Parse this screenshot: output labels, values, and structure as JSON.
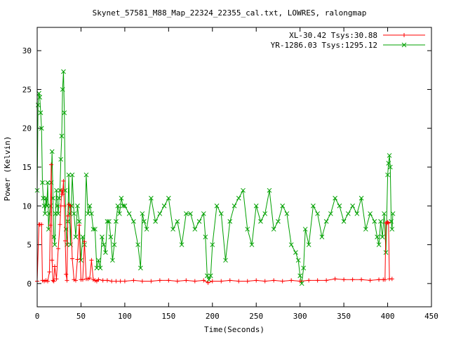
{
  "chart_data": {
    "type": "line",
    "title": "Skynet_57581_M88_Map_22324_22355_cal.txt, LOWRES, ralongmap",
    "xlabel": "Time(Seconds)",
    "ylabel": "Power (Kelvin)",
    "xlim": [
      0,
      450
    ],
    "ylim": [
      -3,
      33
    ],
    "xticks": [
      0,
      50,
      100,
      150,
      200,
      250,
      300,
      350,
      400,
      450
    ],
    "yticks": [
      0,
      5,
      10,
      15,
      20,
      25,
      30
    ],
    "grid": false,
    "legend_position": "top-right",
    "series": [
      {
        "name": "XL-30.42 Tsys:30.88",
        "color": "#ff0000",
        "marker": "plus",
        "x": [
          0,
          2,
          3,
          5,
          6,
          8,
          10,
          12,
          14,
          15,
          16,
          17,
          18,
          19,
          20,
          22,
          24,
          26,
          27,
          28,
          29,
          30,
          31,
          32,
          33,
          34,
          35,
          36,
          38,
          40,
          42,
          44,
          46,
          48,
          50,
          52,
          54,
          56,
          58,
          60,
          62,
          64,
          66,
          68,
          70,
          75,
          80,
          85,
          90,
          95,
          100,
          110,
          120,
          130,
          140,
          150,
          160,
          170,
          180,
          190,
          195,
          200,
          210,
          220,
          230,
          240,
          250,
          260,
          270,
          280,
          290,
          300,
          310,
          320,
          330,
          340,
          350,
          360,
          370,
          380,
          390,
          395,
          397,
          398,
          399,
          400,
          401,
          402,
          405
        ],
        "y": [
          0.3,
          7.6,
          7.6,
          7.6,
          0.4,
          0.3,
          0.4,
          0.3,
          1.5,
          7.5,
          15.3,
          3.0,
          0.4,
          0.3,
          2.2,
          0.6,
          4.5,
          7.6,
          10.0,
          12.0,
          11.5,
          13.2,
          10.0,
          5.5,
          1.2,
          0.4,
          8.7,
          10.2,
          10.0,
          3.2,
          0.5,
          0.4,
          3.1,
          7.5,
          0.5,
          0.5,
          5.4,
          0.6,
          0.6,
          0.7,
          3.0,
          0.5,
          0.4,
          0.3,
          0.5,
          0.4,
          0.4,
          0.3,
          0.3,
          0.3,
          0.3,
          0.4,
          0.3,
          0.3,
          0.4,
          0.4,
          0.3,
          0.4,
          0.3,
          0.4,
          0.1,
          0.3,
          0.3,
          0.4,
          0.3,
          0.3,
          0.4,
          0.3,
          0.4,
          0.3,
          0.4,
          0.3,
          0.4,
          0.4,
          0.4,
          0.6,
          0.5,
          0.5,
          0.5,
          0.4,
          0.5,
          0.5,
          0.5,
          7.8,
          7.8,
          7.9,
          7.8,
          0.6,
          0.6
        ]
      },
      {
        "name": "YR-1286.03 Tsys:1295.12",
        "color": "#00a000",
        "marker": "cross",
        "x": [
          0,
          1,
          2,
          3,
          4,
          5,
          6,
          7,
          8,
          9,
          10,
          11,
          12,
          13,
          14,
          15,
          16,
          17,
          18,
          19,
          20,
          21,
          22,
          23,
          24,
          25,
          26,
          27,
          28,
          29,
          30,
          31,
          32,
          33,
          34,
          35,
          36,
          37,
          38,
          39,
          40,
          42,
          44,
          46,
          48,
          50,
          52,
          54,
          56,
          58,
          60,
          62,
          64,
          66,
          68,
          70,
          72,
          74,
          76,
          78,
          80,
          82,
          84,
          86,
          88,
          90,
          92,
          94,
          96,
          98,
          100,
          105,
          110,
          115,
          118,
          120,
          122,
          125,
          130,
          135,
          140,
          145,
          150,
          155,
          160,
          165,
          170,
          175,
          180,
          185,
          190,
          192,
          194,
          196,
          198,
          200,
          205,
          210,
          215,
          220,
          225,
          230,
          235,
          240,
          245,
          250,
          255,
          260,
          265,
          270,
          275,
          280,
          285,
          290,
          295,
          298,
          300,
          302,
          304,
          306,
          310,
          315,
          320,
          325,
          330,
          335,
          340,
          345,
          350,
          355,
          360,
          365,
          370,
          375,
          380,
          385,
          388,
          390,
          392,
          394,
          396,
          398,
          400,
          401,
          402,
          403,
          404,
          405,
          406
        ],
        "y": [
          12,
          23,
          24.5,
          24,
          22,
          20,
          13,
          11,
          10,
          9,
          11,
          10,
          13,
          7,
          9,
          10,
          13,
          17,
          11,
          6,
          5,
          9,
          12,
          10,
          9,
          11,
          12,
          16,
          19,
          25,
          27.3,
          22,
          12,
          7,
          5,
          8,
          14,
          9,
          5,
          10,
          14,
          9,
          6,
          10,
          8,
          3,
          6,
          5,
          14,
          9,
          10,
          9,
          7,
          7,
          2,
          3,
          2,
          6,
          5,
          4,
          8,
          8,
          6,
          3,
          5,
          8,
          10,
          9,
          11,
          10,
          10,
          9,
          8,
          5,
          2,
          9,
          8,
          7,
          11,
          8,
          9,
          10,
          11,
          7,
          8,
          5,
          9,
          9,
          7,
          8,
          9,
          6,
          1,
          0.5,
          1,
          5,
          10,
          9,
          3,
          8,
          10,
          11,
          12,
          7,
          5,
          10,
          8,
          9,
          12,
          7,
          8,
          10,
          9,
          5,
          4,
          3,
          1,
          0,
          2,
          7,
          5,
          10,
          9,
          6,
          8,
          9,
          11,
          10,
          8,
          9,
          10,
          9,
          11,
          7,
          9,
          8,
          6,
          5,
          8,
          6,
          9,
          4,
          14,
          15.5,
          16.5,
          15,
          8,
          7,
          9
        ]
      }
    ]
  }
}
